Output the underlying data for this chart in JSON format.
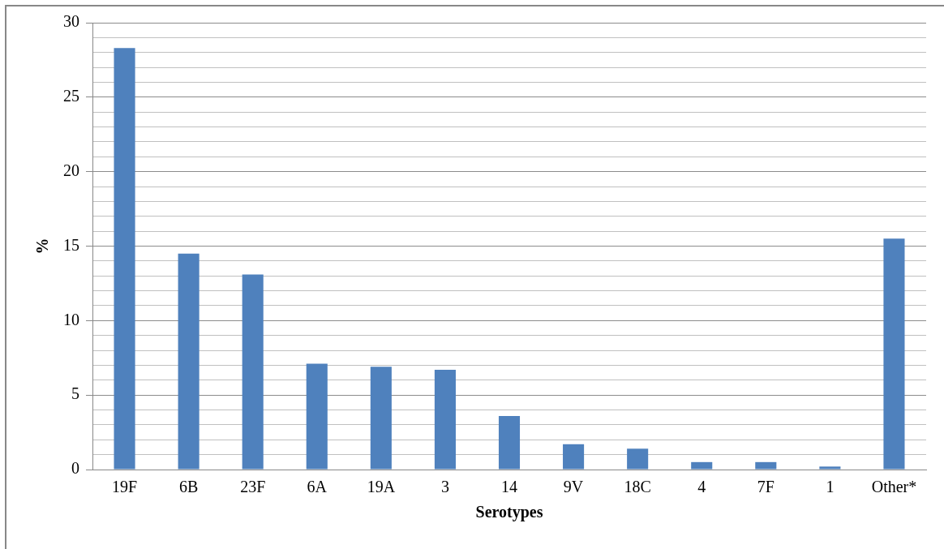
{
  "chart_data": {
    "type": "bar",
    "xlabel": "Serotypes",
    "ylabel": "%",
    "categories": [
      "19F",
      "6B",
      "23F",
      "6A",
      "19A",
      "3",
      "14",
      "9V",
      "18C",
      "4",
      "7F",
      "1",
      "Other*"
    ],
    "values": [
      28.3,
      14.5,
      13.1,
      7.1,
      6.9,
      6.7,
      3.6,
      1.7,
      1.4,
      0.5,
      0.5,
      0.2,
      15.5
    ],
    "color": "#4f81bd",
    "ylim": [
      0,
      30
    ],
    "yticks": [
      0,
      {
        "value": 1,
        "label": null
      },
      {
        "value": 2,
        "label": null
      },
      {
        "value": 3,
        "label": null
      },
      {
        "value": 4,
        "label": null
      },
      5,
      {
        "value": 6,
        "label": null
      },
      {
        "value": 7,
        "label": null
      },
      {
        "value": 8,
        "label": null
      },
      {
        "value": 9,
        "label": null
      },
      10,
      {
        "value": 11,
        "label": null
      },
      {
        "value": 12,
        "label": null
      },
      {
        "value": 13,
        "label": null
      },
      {
        "value": 14,
        "label": null
      },
      15,
      {
        "value": 16,
        "label": null
      },
      {
        "value": 17,
        "label": null
      },
      {
        "value": 18,
        "label": null
      },
      {
        "value": 19,
        "label": null
      },
      20,
      {
        "value": 21,
        "label": null
      },
      {
        "value": 22,
        "label": null
      },
      {
        "value": 23,
        "label": null
      },
      {
        "value": 24,
        "label": null
      },
      25,
      {
        "value": 26,
        "label": null
      },
      {
        "value": 27,
        "label": null
      },
      {
        "value": 28,
        "label": null
      },
      {
        "value": 29,
        "label": null
      },
      30
    ],
    "grid": "y",
    "legend": false
  }
}
